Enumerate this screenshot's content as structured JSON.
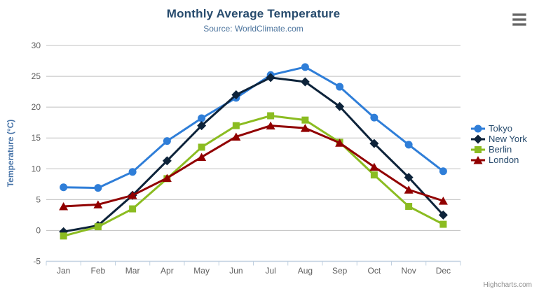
{
  "chart_data": {
    "type": "line",
    "title": "Monthly Average Temperature",
    "subtitle": "Source: WorldClimate.com",
    "xlabel": "",
    "ylabel": "Temperature (°C)",
    "credits": "Highcharts.com",
    "categories": [
      "Jan",
      "Feb",
      "Mar",
      "Apr",
      "May",
      "Jun",
      "Jul",
      "Aug",
      "Sep",
      "Oct",
      "Nov",
      "Dec"
    ],
    "ylim": [
      -5,
      30
    ],
    "ytick_step": 5,
    "grid": true,
    "legend_position": "right",
    "series": [
      {
        "name": "Tokyo",
        "color": "#2f7ed8",
        "marker": "circle",
        "values": [
          7.0,
          6.9,
          9.5,
          14.5,
          18.2,
          21.5,
          25.2,
          26.5,
          23.3,
          18.3,
          13.9,
          9.6
        ]
      },
      {
        "name": "New York",
        "color": "#0d233a",
        "marker": "diamond",
        "values": [
          -0.2,
          0.8,
          5.7,
          11.3,
          17.0,
          22.0,
          24.8,
          24.1,
          20.1,
          14.1,
          8.6,
          2.5
        ]
      },
      {
        "name": "Berlin",
        "color": "#8bbc21",
        "marker": "square",
        "values": [
          -0.9,
          0.6,
          3.5,
          8.4,
          13.5,
          17.0,
          18.6,
          17.9,
          14.3,
          9.0,
          3.9,
          1.0
        ]
      },
      {
        "name": "London",
        "color": "#910000",
        "marker": "triangle",
        "values": [
          3.9,
          4.2,
          5.7,
          8.5,
          11.9,
          15.2,
          17.0,
          16.6,
          14.2,
          10.3,
          6.6,
          4.8
        ]
      }
    ],
    "colors": {
      "title_text": "#274b6d",
      "subtitle_text": "#4d759e",
      "axis_labels": "#606060",
      "y_axis_title": "#4572a7",
      "grid_line": "#c0c0c0",
      "axis_line": "#c0d0e0",
      "legend_text": "#274b6d",
      "credits_text": "#909090",
      "menu_icon": "#666666"
    },
    "icons": {
      "context_menu": "hamburger-menu-icon"
    }
  }
}
